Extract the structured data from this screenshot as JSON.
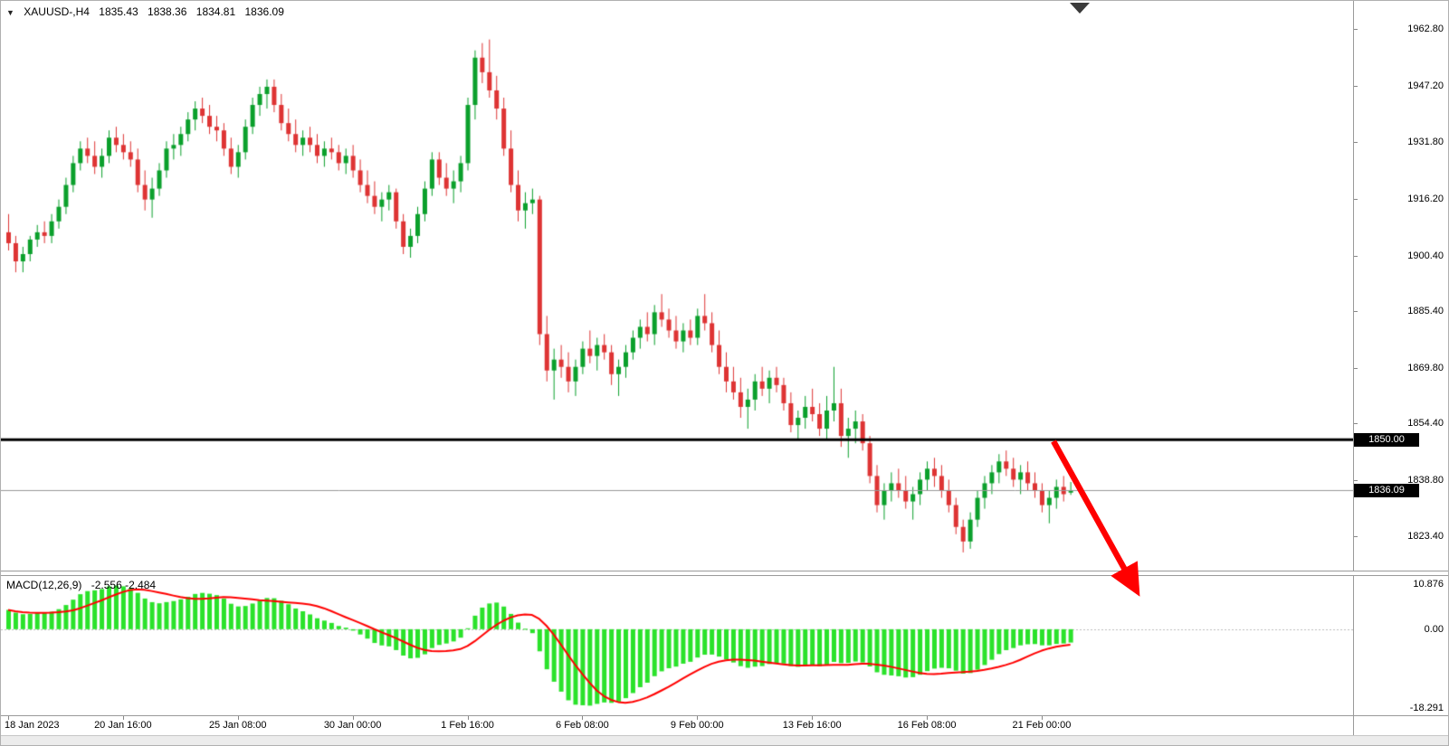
{
  "header": {
    "dropdown_glyph": "▼",
    "symbol_period": "XAUUSD-,H4",
    "open": "1835.43",
    "high": "1838.36",
    "low": "1834.81",
    "close": "1836.09"
  },
  "colors": {
    "background": "#FFFFFF",
    "bull": "#0BA02C",
    "bear": "#DE3434",
    "macd_hist": "#2BE22B",
    "macd_signal": "#FF0000",
    "hline": "#000000",
    "bid_line": "#999999",
    "arrow": "#FF0000",
    "axis_text": "#000000",
    "separator": "#9A9A9A"
  },
  "chart_data": {
    "type": "candlestick",
    "symbol": "XAUUSD-",
    "timeframe": "H4",
    "ylim": [
      1814.0,
      1970.6
    ],
    "grid": false,
    "price_ticks": [
      1962.8,
      1947.2,
      1931.8,
      1916.2,
      1900.4,
      1885.4,
      1869.8,
      1854.4,
      1838.8,
      1823.4
    ],
    "time_labels": [
      {
        "text": "18 Jan 2023",
        "bar": 0
      },
      {
        "text": "20 Jan 16:00",
        "bar": 16
      },
      {
        "text": "25 Jan 08:00",
        "bar": 32
      },
      {
        "text": "30 Jan 00:00",
        "bar": 48
      },
      {
        "text": "1 Feb 16:00",
        "bar": 64
      },
      {
        "text": "6 Feb 08:00",
        "bar": 80
      },
      {
        "text": "9 Feb 00:00",
        "bar": 96
      },
      {
        "text": "13 Feb 16:00",
        "bar": 112
      },
      {
        "text": "16 Feb 08:00",
        "bar": 128
      },
      {
        "text": "21 Feb 00:00",
        "bar": 144
      }
    ],
    "hline": {
      "price": 1850.0,
      "label": "1850.00"
    },
    "bid": {
      "price": 1836.09,
      "label": "1836.09"
    },
    "macd": {
      "label": "MACD(12,26,9)",
      "values_text": "-2.556 -2.484",
      "params": [
        12,
        26,
        9
      ],
      "axis_labels": [
        "10.876",
        "0.00",
        "-18.291"
      ]
    },
    "candles": [
      [
        1907,
        1912,
        1902,
        1904
      ],
      [
        1904,
        1906,
        1896,
        1899
      ],
      [
        1899,
        1903,
        1896,
        1901
      ],
      [
        1901,
        1906,
        1899,
        1905
      ],
      [
        1905,
        1909,
        1903,
        1907
      ],
      [
        1907,
        1910,
        1904,
        1906
      ],
      [
        1906,
        1912,
        1904,
        1910
      ],
      [
        1910,
        1916,
        1908,
        1914
      ],
      [
        1914,
        1922,
        1912,
        1920
      ],
      [
        1920,
        1928,
        1918,
        1926
      ],
      [
        1926,
        1932,
        1924,
        1930
      ],
      [
        1930,
        1933,
        1926,
        1928
      ],
      [
        1928,
        1932,
        1923,
        1925
      ],
      [
        1925,
        1930,
        1922,
        1928
      ],
      [
        1928,
        1935,
        1926,
        1933
      ],
      [
        1933,
        1936,
        1929,
        1931
      ],
      [
        1931,
        1934,
        1927,
        1929
      ],
      [
        1929,
        1932,
        1925,
        1927
      ],
      [
        1927,
        1930,
        1918,
        1920
      ],
      [
        1920,
        1924,
        1913,
        1916
      ],
      [
        1916,
        1922,
        1911,
        1919
      ],
      [
        1919,
        1926,
        1917,
        1924
      ],
      [
        1924,
        1932,
        1922,
        1930
      ],
      [
        1930,
        1934,
        1927,
        1931
      ],
      [
        1931,
        1936,
        1928,
        1934
      ],
      [
        1934,
        1940,
        1932,
        1938
      ],
      [
        1938,
        1943,
        1935,
        1941
      ],
      [
        1941,
        1944,
        1937,
        1939
      ],
      [
        1939,
        1942,
        1934,
        1936
      ],
      [
        1936,
        1939,
        1932,
        1935
      ],
      [
        1935,
        1937,
        1928,
        1930
      ],
      [
        1930,
        1933,
        1923,
        1925
      ],
      [
        1925,
        1931,
        1922,
        1929
      ],
      [
        1929,
        1938,
        1927,
        1936
      ],
      [
        1936,
        1944,
        1934,
        1942
      ],
      [
        1942,
        1947,
        1939,
        1945
      ],
      [
        1945,
        1949,
        1941,
        1947
      ],
      [
        1947,
        1949,
        1940,
        1942
      ],
      [
        1942,
        1945,
        1935,
        1937
      ],
      [
        1937,
        1941,
        1932,
        1934
      ],
      [
        1934,
        1938,
        1929,
        1931
      ],
      [
        1931,
        1935,
        1928,
        1933
      ],
      [
        1933,
        1936,
        1929,
        1931
      ],
      [
        1931,
        1934,
        1926,
        1928
      ],
      [
        1928,
        1932,
        1925,
        1930
      ],
      [
        1930,
        1933,
        1927,
        1929
      ],
      [
        1929,
        1931,
        1924,
        1926
      ],
      [
        1926,
        1930,
        1923,
        1928
      ],
      [
        1928,
        1931,
        1922,
        1924
      ],
      [
        1924,
        1927,
        1918,
        1920
      ],
      [
        1920,
        1924,
        1915,
        1917
      ],
      [
        1917,
        1921,
        1912,
        1914
      ],
      [
        1914,
        1918,
        1910,
        1916
      ],
      [
        1916,
        1920,
        1913,
        1918
      ],
      [
        1918,
        1919,
        1908,
        1910
      ],
      [
        1910,
        1912,
        1901,
        1903
      ],
      [
        1903,
        1908,
        1900,
        1906
      ],
      [
        1906,
        1914,
        1904,
        1912
      ],
      [
        1912,
        1921,
        1910,
        1919
      ],
      [
        1919,
        1929,
        1917,
        1927
      ],
      [
        1927,
        1929,
        1920,
        1922
      ],
      [
        1922,
        1926,
        1917,
        1919
      ],
      [
        1919,
        1924,
        1915,
        1921
      ],
      [
        1921,
        1928,
        1918,
        1926
      ],
      [
        1926,
        1944,
        1924,
        1942
      ],
      [
        1942,
        1957,
        1938,
        1955
      ],
      [
        1955,
        1959,
        1948,
        1951
      ],
      [
        1951,
        1960,
        1944,
        1946
      ],
      [
        1946,
        1950,
        1938,
        1941
      ],
      [
        1941,
        1944,
        1928,
        1930
      ],
      [
        1930,
        1935,
        1918,
        1920
      ],
      [
        1920,
        1924,
        1910,
        1913
      ],
      [
        1913,
        1918,
        1908,
        1915
      ],
      [
        1915,
        1919,
        1912,
        1916
      ],
      [
        1916,
        1917,
        1876,
        1879
      ],
      [
        1879,
        1884,
        1866,
        1869
      ],
      [
        1869,
        1875,
        1861,
        1872
      ],
      [
        1872,
        1876,
        1867,
        1870
      ],
      [
        1870,
        1874,
        1863,
        1866
      ],
      [
        1866,
        1872,
        1862,
        1870
      ],
      [
        1870,
        1877,
        1868,
        1875
      ],
      [
        1875,
        1880,
        1871,
        1873
      ],
      [
        1873,
        1878,
        1869,
        1876
      ],
      [
        1876,
        1879,
        1872,
        1874
      ],
      [
        1874,
        1876,
        1865,
        1868
      ],
      [
        1868,
        1872,
        1862,
        1870
      ],
      [
        1870,
        1876,
        1867,
        1874
      ],
      [
        1874,
        1880,
        1872,
        1878
      ],
      [
        1878,
        1883,
        1875,
        1881
      ],
      [
        1881,
        1885,
        1877,
        1879
      ],
      [
        1879,
        1887,
        1876,
        1885
      ],
      [
        1885,
        1890,
        1881,
        1883
      ],
      [
        1883,
        1886,
        1878,
        1880
      ],
      [
        1880,
        1884,
        1875,
        1877
      ],
      [
        1877,
        1882,
        1874,
        1880
      ],
      [
        1880,
        1883,
        1876,
        1878
      ],
      [
        1878,
        1886,
        1876,
        1884
      ],
      [
        1884,
        1890,
        1880,
        1882
      ],
      [
        1882,
        1885,
        1874,
        1876
      ],
      [
        1876,
        1880,
        1868,
        1870
      ],
      [
        1870,
        1874,
        1863,
        1866
      ],
      [
        1866,
        1870,
        1861,
        1863
      ],
      [
        1863,
        1867,
        1856,
        1859
      ],
      [
        1859,
        1864,
        1853,
        1861
      ],
      [
        1861,
        1868,
        1858,
        1866
      ],
      [
        1866,
        1870,
        1862,
        1864
      ],
      [
        1864,
        1869,
        1860,
        1867
      ],
      [
        1867,
        1870,
        1863,
        1865
      ],
      [
        1865,
        1867,
        1858,
        1860
      ],
      [
        1860,
        1863,
        1852,
        1854
      ],
      [
        1854,
        1858,
        1850,
        1856
      ],
      [
        1856,
        1862,
        1853,
        1859
      ],
      [
        1859,
        1864,
        1855,
        1857
      ],
      [
        1857,
        1860,
        1851,
        1853
      ],
      [
        1853,
        1862,
        1850,
        1858
      ],
      [
        1858,
        1870,
        1855,
        1860
      ],
      [
        1860,
        1864,
        1848,
        1851
      ],
      [
        1851,
        1856,
        1845,
        1853
      ],
      [
        1853,
        1858,
        1849,
        1855
      ],
      [
        1855,
        1857,
        1847,
        1849
      ],
      [
        1849,
        1851,
        1838,
        1840
      ],
      [
        1840,
        1843,
        1830,
        1832
      ],
      [
        1832,
        1838,
        1828,
        1836
      ],
      [
        1836,
        1841,
        1833,
        1838
      ],
      [
        1838,
        1842,
        1834,
        1836
      ],
      [
        1836,
        1840,
        1831,
        1833
      ],
      [
        1833,
        1837,
        1828,
        1835
      ],
      [
        1835,
        1841,
        1832,
        1839
      ],
      [
        1839,
        1844,
        1836,
        1842
      ],
      [
        1842,
        1845,
        1837,
        1840
      ],
      [
        1840,
        1843,
        1834,
        1836
      ],
      [
        1836,
        1839,
        1830,
        1832
      ],
      [
        1832,
        1834,
        1824,
        1826
      ],
      [
        1826,
        1828,
        1819,
        1822
      ],
      [
        1822,
        1830,
        1820,
        1828
      ],
      [
        1828,
        1836,
        1826,
        1834
      ],
      [
        1834,
        1840,
        1831,
        1838
      ],
      [
        1838,
        1843,
        1835,
        1841
      ],
      [
        1841,
        1846,
        1838,
        1844
      ],
      [
        1844,
        1847,
        1840,
        1842
      ],
      [
        1842,
        1845,
        1837,
        1839
      ],
      [
        1839,
        1843,
        1835,
        1841
      ],
      [
        1841,
        1844,
        1836,
        1838
      ],
      [
        1838,
        1841,
        1834,
        1836
      ],
      [
        1836,
        1838,
        1830,
        1832
      ],
      [
        1832,
        1836,
        1827,
        1834
      ],
      [
        1834,
        1839,
        1831,
        1837
      ],
      [
        1837,
        1840,
        1833,
        1835
      ],
      [
        1835.43,
        1838.36,
        1834.81,
        1836.09
      ]
    ]
  }
}
